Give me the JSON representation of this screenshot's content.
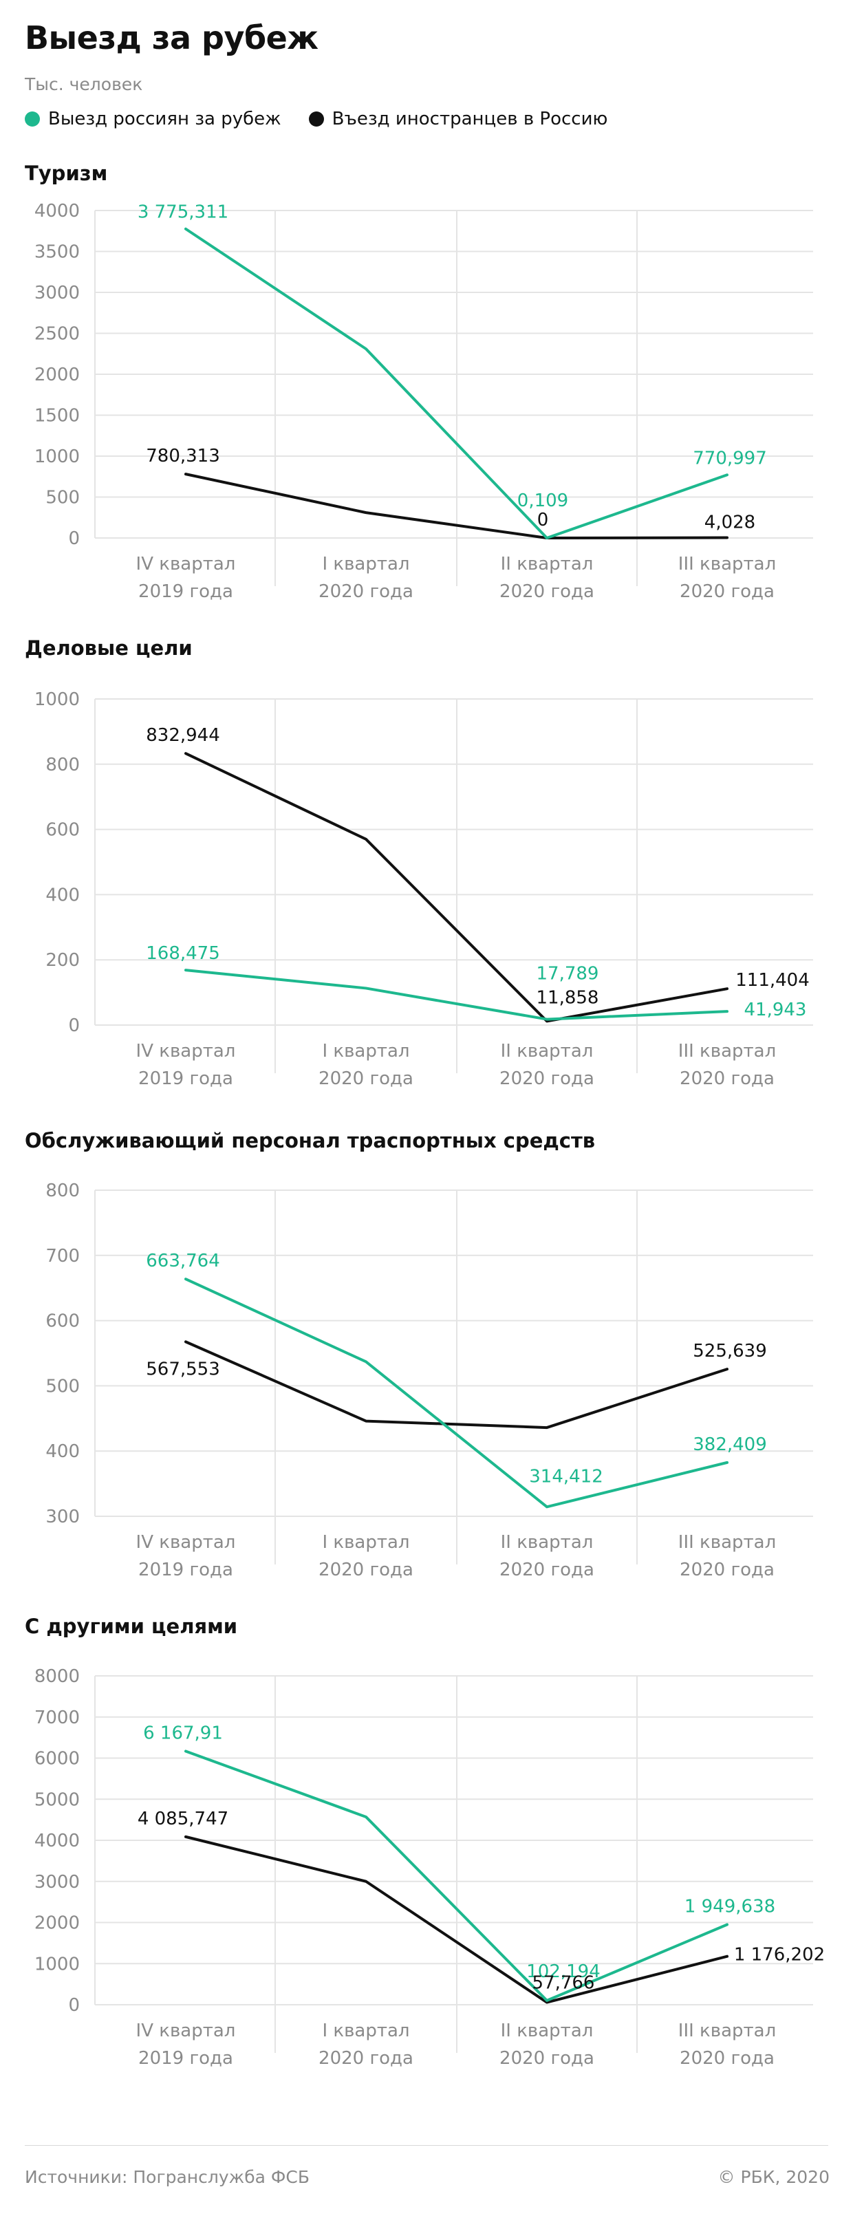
{
  "header": {
    "title": "Выезд за рубеж",
    "subtitle": "Тыс. человек"
  },
  "legend": [
    {
      "label": "Выезд россиян за рубеж",
      "color": "#1db88e"
    },
    {
      "label": "Въезд иностранцев в Россию",
      "color": "#111111"
    }
  ],
  "colors": {
    "green": "#1db88e",
    "black": "#111111",
    "grid": "#e4e4e4",
    "axis_text": "#8a8a8a"
  },
  "chart_data": [
    {
      "type": "line",
      "title": "Туризм",
      "categories": [
        "IV квартал\n2019 года",
        "I квартал\n2020 года",
        "II квартал\n2020 года",
        "III квартал\n2020 года"
      ],
      "ylim": [
        0,
        4000
      ],
      "yticks": [
        0,
        500,
        1000,
        1500,
        2000,
        2500,
        3000,
        3500,
        4000
      ],
      "series": [
        {
          "name": "Выезд россиян за рубеж",
          "color": "#1db88e",
          "values": [
            3775.311,
            2310,
            0.109,
            770.997
          ],
          "labels": [
            "3 775,311",
            "",
            "0,109",
            "770,997"
          ]
        },
        {
          "name": "Въезд иностранцев в Россию",
          "color": "#111111",
          "values": [
            780.313,
            310,
            0,
            4.028
          ],
          "labels": [
            "780,313",
            "",
            "0",
            "4,028"
          ]
        }
      ]
    },
    {
      "type": "line",
      "title": "Деловые цели",
      "categories": [
        "IV квартал\n2019 года",
        "I квартал\n2020 года",
        "II квартал\n2020 года",
        "III квартал\n2020 года"
      ],
      "ylim": [
        0,
        1000
      ],
      "yticks": [
        0,
        200,
        400,
        600,
        800,
        1000
      ],
      "series": [
        {
          "name": "Выезд россиян за рубеж",
          "color": "#1db88e",
          "values": [
            168.475,
            113,
            17.789,
            41.943
          ],
          "labels": [
            "168,475",
            "",
            "17,789",
            "41,943"
          ]
        },
        {
          "name": "Въезд иностранцев в Россию",
          "color": "#111111",
          "values": [
            832.944,
            570,
            11.858,
            111.404
          ],
          "labels": [
            "832,944",
            "",
            "11,858",
            "111,404"
          ]
        }
      ]
    },
    {
      "type": "line",
      "title": "Обслуживающий персонал траспортных средств",
      "categories": [
        "IV квартал\n2019 года",
        "I квартал\n2020 года",
        "II квартал\n2020 года",
        "III квартал\n2020 года"
      ],
      "ylim": [
        300,
        800
      ],
      "yticks": [
        300,
        400,
        500,
        600,
        700,
        800
      ],
      "series": [
        {
          "name": "Выезд россиян за рубеж",
          "color": "#1db88e",
          "values": [
            663.764,
            537,
            314.412,
            382.409
          ],
          "labels": [
            "663,764",
            "",
            "314,412",
            "382,409"
          ]
        },
        {
          "name": "Въезд иностранцев в Россию",
          "color": "#111111",
          "values": [
            567.553,
            446,
            436,
            525.639
          ],
          "labels": [
            "567,553",
            "",
            "",
            "525,639"
          ]
        }
      ]
    },
    {
      "type": "line",
      "title": "С другими целями",
      "categories": [
        "IV квартал\n2019 года",
        "I квартал\n2020 года",
        "II квартал\n2020 года",
        "III квартал\n2020 года"
      ],
      "ylim": [
        0,
        8000
      ],
      "yticks": [
        0,
        1000,
        2000,
        3000,
        4000,
        5000,
        6000,
        7000,
        8000
      ],
      "series": [
        {
          "name": "Выезд россиян за рубеж",
          "color": "#1db88e",
          "values": [
            6167.91,
            4570,
            102.194,
            1949.638
          ],
          "labels": [
            "6 167,91",
            "",
            "102,194",
            "1 949,638"
          ]
        },
        {
          "name": "Въезд иностранцев в Россию",
          "color": "#111111",
          "values": [
            4085.747,
            3000,
            57.766,
            1176.202
          ],
          "labels": [
            "4 085,747",
            "",
            "57,766",
            "1 176,202"
          ]
        }
      ]
    }
  ],
  "footer": {
    "source": "Источники: Погранслужба ФСБ",
    "copyright": "© РБК, 2020"
  }
}
